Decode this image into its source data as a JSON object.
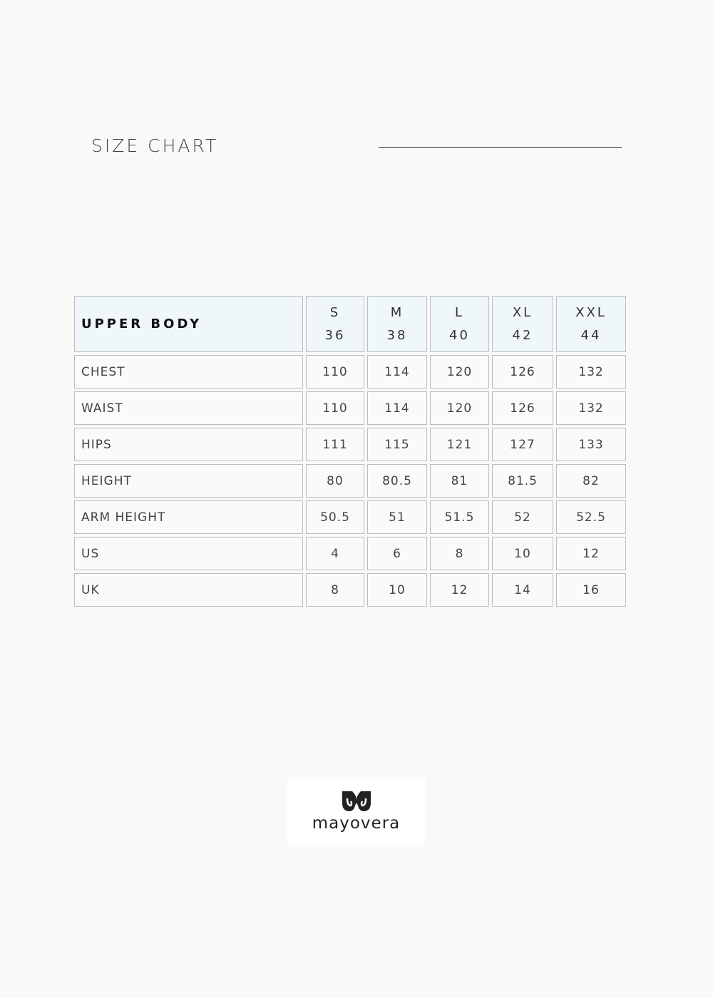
{
  "title": "SIZE CHART",
  "table": {
    "header_label": "UPPER BODY",
    "sizes": [
      {
        "letter": "S",
        "number": "36"
      },
      {
        "letter": "M",
        "number": "38"
      },
      {
        "letter": "L",
        "number": "40"
      },
      {
        "letter": "XL",
        "number": "42"
      },
      {
        "letter": "XXL",
        "number": "44"
      }
    ],
    "rows": [
      {
        "label": "CHEST",
        "values": [
          "110",
          "114",
          "120",
          "126",
          "132"
        ]
      },
      {
        "label": "WAIST",
        "values": [
          "110",
          "114",
          "120",
          "126",
          "132"
        ]
      },
      {
        "label": "HIPS",
        "values": [
          "111",
          "115",
          "121",
          "127",
          "133"
        ]
      },
      {
        "label": "HEIGHT",
        "values": [
          "80",
          "80.5",
          "81",
          "81.5",
          "82"
        ]
      },
      {
        "label": "ARM HEIGHT",
        "values": [
          "50.5",
          "51",
          "51.5",
          "52",
          "52.5"
        ]
      },
      {
        "label": "US",
        "values": [
          "4",
          "6",
          "8",
          "10",
          "12"
        ]
      },
      {
        "label": "UK",
        "values": [
          "8",
          "10",
          "12",
          "14",
          "16"
        ]
      }
    ]
  },
  "logo": {
    "text": "mayovera"
  },
  "colors": {
    "header_bg": "#eff7fa",
    "border": "#bcbcbc"
  }
}
